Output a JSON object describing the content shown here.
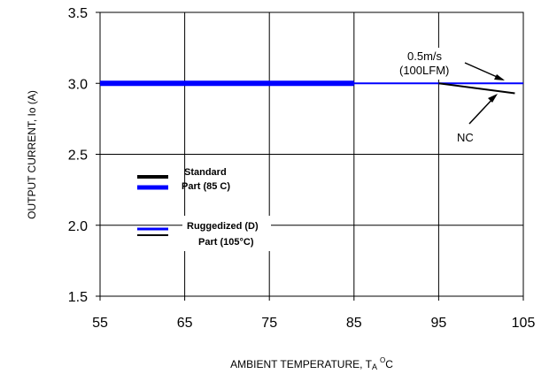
{
  "chart_data": {
    "type": "line",
    "title": "",
    "xlabel_prefix": "AMBIENT TEMPERATURE, T",
    "xlabel_sub": "A",
    "xlabel_sup": "O",
    "xlabel_suffix": "C",
    "ylabel": "OUTPUT CURRENT, Io (A)",
    "xlim": [
      55,
      105
    ],
    "ylim": [
      1.5,
      3.5
    ],
    "x_ticks": [
      "55",
      "65",
      "75",
      "85",
      "95",
      "105"
    ],
    "y_ticks": [
      "1.5",
      "2.0",
      "2.5",
      "3.0",
      "3.5"
    ],
    "grid": true,
    "series": [
      {
        "name": "Standard Part (85 C) - 0.5m/s (100LFM)",
        "color": "#0000ff",
        "style": "thick",
        "points": [
          [
            55,
            3.0
          ],
          [
            85,
            3.0
          ]
        ]
      },
      {
        "name": "Ruggedized (D) Part (105°C) - 0.5m/s (100LFM)",
        "color": "#0000ff",
        "style": "thin",
        "points": [
          [
            55,
            3.0
          ],
          [
            105,
            3.0
          ]
        ]
      },
      {
        "name": "Ruggedized (D) Part (105°C) - NC",
        "color": "#000000",
        "style": "thin",
        "points": [
          [
            95,
            3.0
          ],
          [
            104,
            2.93
          ]
        ]
      }
    ],
    "legend": {
      "placement": "left",
      "group1_line1": "Standard",
      "group1_line2": "Part (85 C)",
      "group2_line1": "Ruggedized (D)",
      "group2_line2": "Part (105°C)"
    },
    "annotations": {
      "airflow_line1": "0.5m/s",
      "airflow_line2": "(100LFM)",
      "nc": "NC"
    }
  }
}
